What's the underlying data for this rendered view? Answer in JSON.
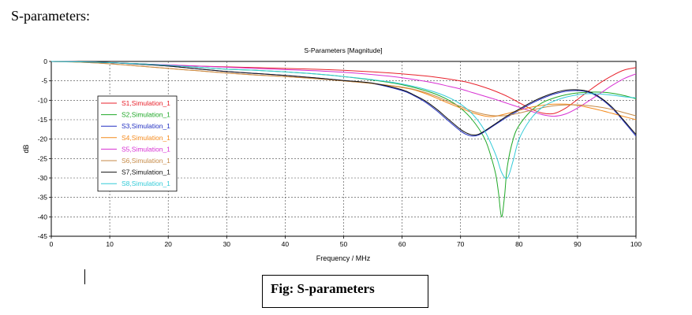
{
  "document": {
    "heading": "S-parameters:",
    "caption": "Fig: S-parameters"
  },
  "chart_data": {
    "type": "line",
    "title": "S-Parameters [Magnitude]",
    "xlabel": "Frequency / MHz",
    "ylabel": "dB",
    "xlim": [
      0,
      100
    ],
    "ylim": [
      -45,
      0
    ],
    "xticks": [
      0,
      10,
      20,
      30,
      40,
      50,
      60,
      70,
      80,
      90,
      100
    ],
    "yticks": [
      0,
      -5,
      -10,
      -15,
      -20,
      -25,
      -30,
      -35,
      -40,
      -45
    ],
    "grid": true,
    "legend_position": "left",
    "series": [
      {
        "name": "S1,Simulation_1",
        "color": "#e8212b",
        "x": [
          0,
          5,
          10,
          15,
          20,
          25,
          30,
          35,
          40,
          45,
          50,
          55,
          60,
          65,
          70,
          72,
          74,
          76,
          78,
          80,
          82,
          84,
          86,
          88,
          90,
          92,
          94,
          96,
          98,
          100
        ],
        "y": [
          0,
          -0.1,
          -0.3,
          -0.6,
          -0.9,
          -1.2,
          -1.4,
          -1.6,
          -1.8,
          -2.0,
          -2.3,
          -2.7,
          -3.2,
          -3.9,
          -5.0,
          -5.7,
          -6.6,
          -7.7,
          -9.0,
          -10.6,
          -12.2,
          -13.3,
          -13.4,
          -12.0,
          -9.8,
          -7.5,
          -5.4,
          -3.6,
          -2.2,
          -1.6
        ]
      },
      {
        "name": "S2,Simulation_1",
        "color": "#1fa827",
        "x": [
          0,
          5,
          10,
          15,
          20,
          25,
          30,
          35,
          40,
          45,
          50,
          55,
          60,
          65,
          68,
          70,
          72,
          74,
          75,
          76,
          76.5,
          77,
          77.5,
          78,
          79,
          80,
          82,
          84,
          86,
          88,
          90,
          92,
          94,
          96,
          98,
          100
        ],
        "y": [
          0,
          -0.1,
          -0.3,
          -0.6,
          -1.0,
          -1.5,
          -2.0,
          -2.3,
          -2.7,
          -3.2,
          -3.9,
          -4.8,
          -6.0,
          -8.0,
          -10.0,
          -12.0,
          -15.0,
          -19.5,
          -23.5,
          -29.0,
          -34.0,
          -40.0,
          -35.0,
          -27.0,
          -20.0,
          -16.5,
          -12.8,
          -10.6,
          -9.4,
          -8.6,
          -8.1,
          -7.9,
          -7.9,
          -8.2,
          -8.8,
          -9.6
        ]
      },
      {
        "name": "S3,Simulation_1",
        "color": "#2230c2",
        "x": [
          0,
          5,
          10,
          15,
          20,
          25,
          30,
          35,
          40,
          45,
          50,
          55,
          60,
          62,
          64,
          66,
          68,
          70,
          71,
          72,
          73,
          74,
          76,
          78,
          80,
          82,
          84,
          86,
          88,
          90,
          92,
          94,
          96,
          98,
          100
        ],
        "y": [
          0,
          -0.1,
          -0.3,
          -0.7,
          -1.2,
          -1.9,
          -2.6,
          -3.1,
          -3.6,
          -4.2,
          -4.9,
          -5.7,
          -7.5,
          -8.8,
          -10.5,
          -12.8,
          -15.4,
          -17.9,
          -18.8,
          -19.2,
          -19.0,
          -18.2,
          -16.2,
          -14.3,
          -12.6,
          -10.9,
          -9.5,
          -8.4,
          -7.7,
          -7.5,
          -8.0,
          -9.6,
          -12.2,
          -15.6,
          -19.2
        ]
      },
      {
        "name": "S4,Simulation_1",
        "color": "#f48a1c",
        "x": [
          0,
          5,
          10,
          15,
          20,
          25,
          30,
          35,
          40,
          45,
          50,
          55,
          60,
          62,
          64,
          66,
          68,
          70,
          72,
          74,
          75,
          76,
          78,
          80,
          82,
          84,
          86,
          88,
          90,
          92,
          94,
          96,
          98,
          100
        ],
        "y": [
          0,
          -0.2,
          -0.6,
          -1.2,
          -1.8,
          -2.4,
          -3.0,
          -3.5,
          -3.9,
          -4.4,
          -5.0,
          -5.7,
          -6.7,
          -7.3,
          -8.3,
          -9.5,
          -10.8,
          -12.0,
          -13.2,
          -14.0,
          -14.2,
          -14.1,
          -13.4,
          -12.6,
          -11.8,
          -11.3,
          -11.0,
          -11.0,
          -11.3,
          -11.9,
          -12.6,
          -13.4,
          -14.2,
          -15.0
        ]
      },
      {
        "name": "S5,Simulation_1",
        "color": "#d72fd2",
        "x": [
          0,
          5,
          10,
          15,
          20,
          25,
          30,
          35,
          40,
          45,
          50,
          55,
          60,
          65,
          68,
          70,
          72,
          74,
          76,
          78,
          80,
          82,
          84,
          86,
          88,
          90,
          92,
          94,
          96,
          98,
          100
        ],
        "y": [
          0,
          -0.1,
          -0.3,
          -0.6,
          -0.9,
          -1.2,
          -1.5,
          -1.8,
          -2.1,
          -2.4,
          -2.8,
          -3.4,
          -4.2,
          -5.4,
          -6.4,
          -7.1,
          -8.0,
          -8.9,
          -9.8,
          -10.8,
          -11.8,
          -12.8,
          -13.7,
          -14.1,
          -13.5,
          -12.0,
          -10.1,
          -8.1,
          -6.1,
          -4.4,
          -3.2
        ]
      },
      {
        "name": "S6,Simulation_1",
        "color": "#c58a47",
        "x": [
          0,
          5,
          10,
          15,
          20,
          25,
          30,
          35,
          40,
          45,
          50,
          55,
          60,
          62,
          64,
          66,
          68,
          70,
          72,
          74,
          76,
          78,
          80,
          82,
          84,
          86,
          88,
          90,
          92,
          94,
          96,
          98,
          100
        ],
        "y": [
          0,
          -0.2,
          -0.6,
          -1.2,
          -1.8,
          -2.4,
          -3.0,
          -3.5,
          -3.9,
          -4.4,
          -5.0,
          -5.7,
          -6.6,
          -7.2,
          -8.0,
          -9.1,
          -10.4,
          -11.6,
          -12.8,
          -13.6,
          -14.0,
          -13.9,
          -13.3,
          -12.6,
          -11.9,
          -11.4,
          -11.2,
          -11.2,
          -11.4,
          -11.8,
          -12.4,
          -13.2,
          -14.0
        ]
      },
      {
        "name": "S7,Simulation_1",
        "color": "#111111",
        "x": [
          0,
          5,
          10,
          15,
          20,
          25,
          30,
          35,
          40,
          45,
          50,
          55,
          60,
          62,
          64,
          66,
          68,
          70,
          71,
          72,
          73,
          74,
          76,
          78,
          80,
          82,
          84,
          86,
          88,
          90,
          92,
          94,
          96,
          98,
          100
        ],
        "y": [
          0,
          -0.1,
          -0.3,
          -0.7,
          -1.2,
          -1.9,
          -2.6,
          -3.1,
          -3.6,
          -4.2,
          -4.9,
          -5.6,
          -7.3,
          -8.6,
          -10.2,
          -12.4,
          -15.0,
          -17.5,
          -18.4,
          -18.9,
          -18.8,
          -18.0,
          -16.0,
          -14.0,
          -12.3,
          -10.6,
          -9.2,
          -8.1,
          -7.4,
          -7.3,
          -7.8,
          -9.4,
          -11.9,
          -15.3,
          -18.8
        ]
      },
      {
        "name": "S8,Simulation_1",
        "color": "#34cbd8",
        "x": [
          0,
          5,
          10,
          15,
          20,
          25,
          30,
          35,
          40,
          45,
          50,
          55,
          60,
          65,
          68,
          70,
          72,
          74,
          76,
          77,
          78,
          79,
          80,
          82,
          84,
          86,
          88,
          90,
          92,
          94,
          96,
          98,
          100
        ],
        "y": [
          0,
          -0.1,
          -0.3,
          -0.6,
          -1.0,
          -1.5,
          -2.0,
          -2.3,
          -2.7,
          -3.2,
          -3.9,
          -4.7,
          -5.8,
          -7.6,
          -9.3,
          -11.0,
          -13.5,
          -17.5,
          -24.0,
          -28.5,
          -30.0,
          -25.5,
          -20.0,
          -14.8,
          -11.8,
          -10.2,
          -9.2,
          -8.6,
          -8.3,
          -8.4,
          -8.7,
          -9.1,
          -9.4
        ]
      }
    ]
  }
}
